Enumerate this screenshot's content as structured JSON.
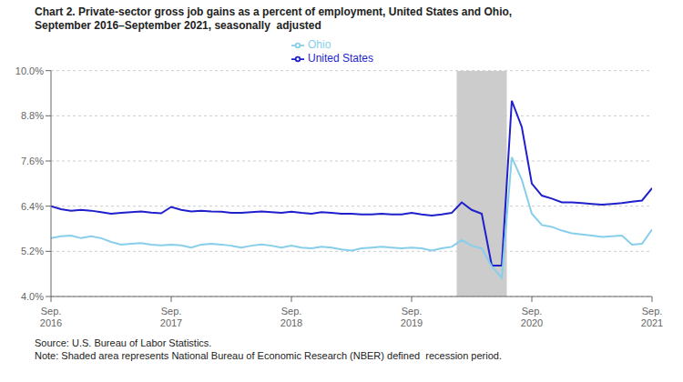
{
  "chart_data": {
    "type": "line",
    "title": "Chart 2. Private-sector gross job gains as a percent of employment, United States and Ohio,\nSeptember 2016–September 2021, seasonally  adjusted",
    "annotations": [
      "Source: U.S. Bureau of Labor Statistics.",
      "Note: Shaded area represents National Bureau of Economic Research (NBER) defined  recession period."
    ],
    "categories": [
      "Sep.\n2016",
      null,
      null,
      null,
      null,
      null,
      null,
      null,
      null,
      null,
      null,
      null,
      "Sep.\n2017",
      null,
      null,
      null,
      null,
      null,
      null,
      null,
      null,
      null,
      null,
      null,
      "Sep.\n2018",
      null,
      null,
      null,
      null,
      null,
      null,
      null,
      null,
      null,
      null,
      null,
      "Sep.\n2019",
      null,
      null,
      null,
      null,
      null,
      null,
      null,
      null,
      null,
      null,
      null,
      "Sep.\n2020",
      null,
      null,
      null,
      null,
      null,
      null,
      null,
      null,
      null,
      null,
      null,
      "Sep.\n2021"
    ],
    "series": [
      {
        "name": "United States",
        "color": "#1F1FCC",
        "values": [
          6.4,
          6.32,
          6.28,
          6.3,
          6.28,
          6.24,
          6.2,
          6.22,
          6.24,
          6.26,
          6.23,
          6.21,
          6.38,
          6.3,
          6.26,
          6.28,
          6.26,
          6.25,
          6.22,
          6.22,
          6.24,
          6.26,
          6.24,
          6.22,
          6.25,
          6.22,
          6.2,
          6.24,
          6.22,
          6.2,
          6.2,
          6.18,
          6.18,
          6.2,
          6.18,
          6.18,
          6.22,
          6.18,
          6.15,
          6.18,
          6.22,
          6.5,
          6.3,
          6.2,
          4.82,
          4.82,
          9.2,
          8.5,
          7.0,
          6.68,
          6.6,
          6.5,
          6.5,
          6.48,
          6.46,
          6.44,
          6.46,
          6.48,
          6.52,
          6.55,
          6.88
        ]
      },
      {
        "name": "Ohio",
        "color": "#87CEEB",
        "values": [
          5.55,
          5.6,
          5.62,
          5.55,
          5.6,
          5.55,
          5.45,
          5.38,
          5.4,
          5.42,
          5.38,
          5.36,
          5.38,
          5.36,
          5.3,
          5.38,
          5.4,
          5.38,
          5.35,
          5.3,
          5.35,
          5.38,
          5.35,
          5.3,
          5.35,
          5.3,
          5.28,
          5.32,
          5.3,
          5.25,
          5.22,
          5.28,
          5.3,
          5.32,
          5.3,
          5.28,
          5.3,
          5.28,
          5.22,
          5.28,
          5.32,
          5.5,
          5.35,
          5.28,
          4.8,
          4.5,
          7.7,
          7.1,
          6.2,
          5.9,
          5.85,
          5.75,
          5.68,
          5.65,
          5.62,
          5.58,
          5.6,
          5.62,
          5.38,
          5.4,
          5.78
        ]
      }
    ],
    "shaded_span": [
      40.5,
      45.5
    ],
    "shaded_color": "#CCCCCC",
    "ylim": [
      4.0,
      10.0
    ],
    "yticks": [
      {
        "value": 4.0,
        "label": "4.0%"
      },
      {
        "value": 5.2,
        "label": "5.2%"
      },
      {
        "value": 6.4,
        "label": "6.4%"
      },
      {
        "value": 7.6,
        "label": "7.6%"
      },
      {
        "value": 8.8,
        "label": "8.8%"
      },
      {
        "value": 10.0,
        "label": "10.0%"
      }
    ],
    "grid": true,
    "legend": "top"
  }
}
